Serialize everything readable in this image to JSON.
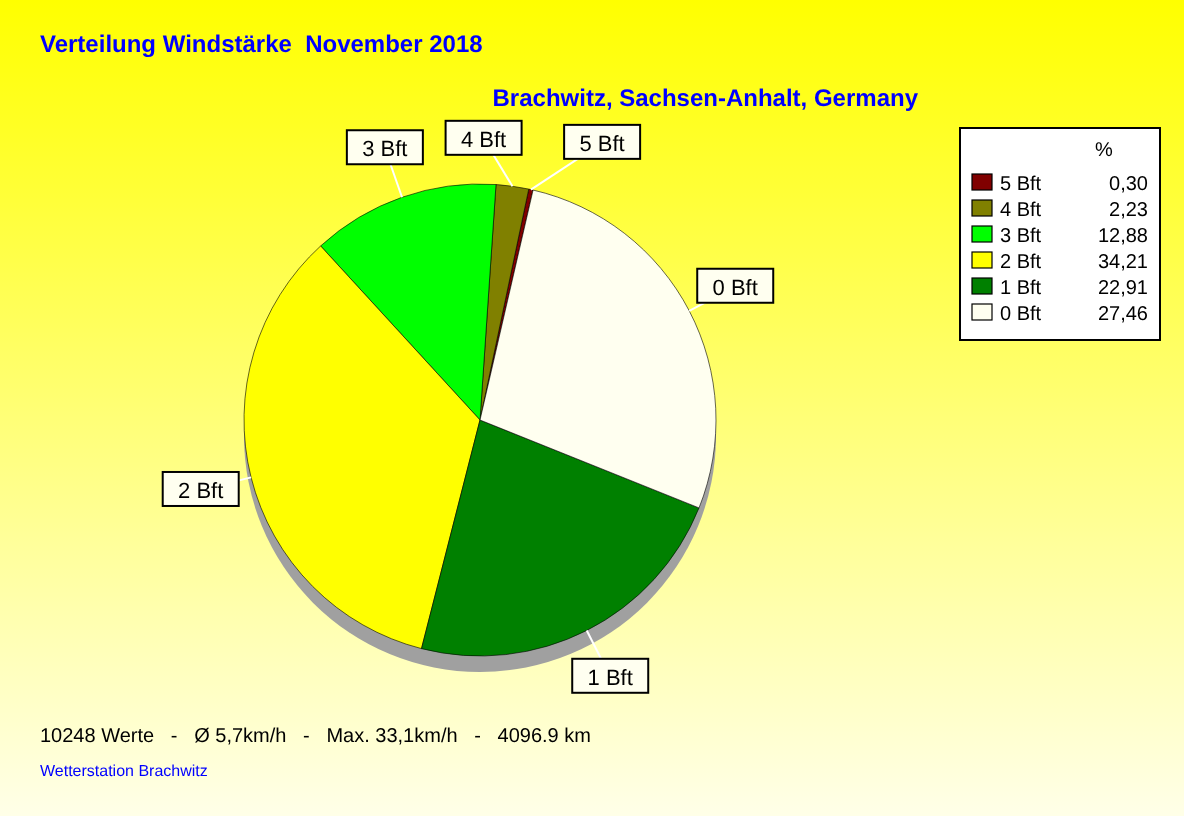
{
  "chart_data": {
    "type": "pie",
    "title": "Verteilung Windstärke  November 2018",
    "subtitle": "Brachwitz, Sachsen-Anhalt, Germany",
    "categories": [
      "5 Bft",
      "4 Bft",
      "3 Bft",
      "2 Bft",
      "1 Bft",
      "0 Bft"
    ],
    "values": [
      0.3,
      2.23,
      12.88,
      34.21,
      22.91,
      27.46
    ],
    "value_labels": [
      "0,30",
      "2,23",
      "12,88",
      "34,21",
      "22,91",
      "27,46"
    ],
    "colors": [
      "#800000",
      "#808000",
      "#00ff00",
      "#ffff00",
      "#008000",
      "#fffff0"
    ],
    "legend": "top right",
    "legend_title": "%",
    "annotations": [
      "10248 Werte   -   Ø 5,7km/h   -   Max. 33,1km/h   -   4096.9 km",
      "Wetterstation Brachwitz"
    ]
  }
}
